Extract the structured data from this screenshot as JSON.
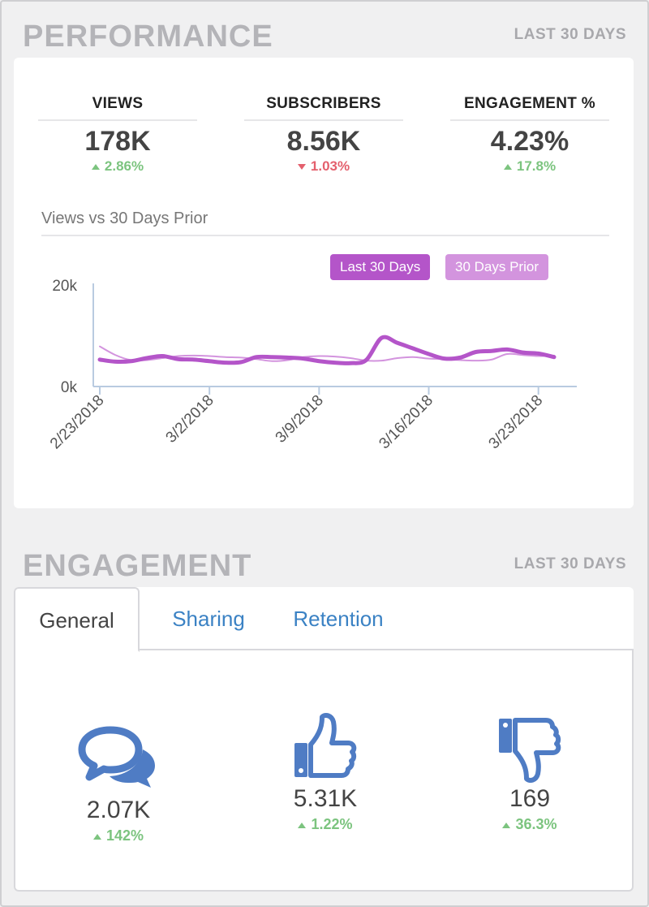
{
  "performance": {
    "title": "PERFORMANCE",
    "range": "LAST 30 DAYS",
    "kpis": [
      {
        "label": "VIEWS",
        "value": "178K",
        "change": "2.86%",
        "direction": "up"
      },
      {
        "label": "SUBSCRIBERS",
        "value": "8.56K",
        "change": "1.03%",
        "direction": "down"
      },
      {
        "label": "ENGAGEMENT %",
        "value": "4.23%",
        "change": "17.8%",
        "direction": "up"
      }
    ],
    "chart_title": "Views vs 30 Days Prior",
    "legend": {
      "last": "Last 30 Days",
      "prior": "30 Days Prior"
    }
  },
  "chart_data": {
    "type": "line",
    "title": "Views vs 30 Days Prior",
    "x": [
      "2/23/2018",
      "2/24/2018",
      "2/25/2018",
      "2/26/2018",
      "2/27/2018",
      "2/28/2018",
      "3/1/2018",
      "3/2/2018",
      "3/3/2018",
      "3/4/2018",
      "3/5/2018",
      "3/6/2018",
      "3/7/2018",
      "3/8/2018",
      "3/9/2018",
      "3/10/2018",
      "3/11/2018",
      "3/12/2018",
      "3/13/2018",
      "3/14/2018",
      "3/15/2018",
      "3/16/2018",
      "3/17/2018",
      "3/18/2018",
      "3/19/2018",
      "3/20/2018",
      "3/21/2018",
      "3/22/2018",
      "3/23/2018",
      "3/24/2018"
    ],
    "x_ticks": [
      "2/23/2018",
      "3/2/2018",
      "3/9/2018",
      "3/16/2018",
      "3/23/2018"
    ],
    "y_ticks": [
      "0k",
      "20k"
    ],
    "ylim": [
      0,
      20000
    ],
    "series": [
      {
        "name": "Last 30 Days",
        "color": "#b455c9",
        "values": [
          5300,
          4900,
          5000,
          5600,
          6000,
          5400,
          5300,
          5000,
          4700,
          4800,
          5800,
          5800,
          5700,
          5500,
          5000,
          4700,
          4600,
          5200,
          9600,
          8600,
          7500,
          6400,
          5500,
          5700,
          6800,
          7000,
          7300,
          6700,
          6500,
          5800
        ]
      },
      {
        "name": "30 Days Prior",
        "color": "#d394de",
        "values": [
          7900,
          6200,
          5200,
          5200,
          5600,
          6000,
          6100,
          6000,
          5800,
          5700,
          5400,
          5000,
          5200,
          5800,
          6000,
          5900,
          5600,
          5100,
          5100,
          5600,
          5800,
          5500,
          5400,
          5200,
          5100,
          5300,
          6400,
          6200,
          6000,
          6100
        ]
      }
    ],
    "grid": false,
    "legend_position": "top-right"
  },
  "engagement": {
    "title": "ENGAGEMENT",
    "range": "LAST 30 DAYS",
    "tabs": [
      "General",
      "Sharing",
      "Retention"
    ],
    "active_tab": "General",
    "metrics": [
      {
        "icon": "comments-icon",
        "value": "2.07K",
        "change": "142%",
        "direction": "up"
      },
      {
        "icon": "thumbs-up-icon",
        "value": "5.31K",
        "change": "1.22%",
        "direction": "up"
      },
      {
        "icon": "thumbs-down-icon",
        "value": "169",
        "change": "36.3%",
        "direction": "up"
      }
    ],
    "icon_color": "#4f7cc4"
  }
}
